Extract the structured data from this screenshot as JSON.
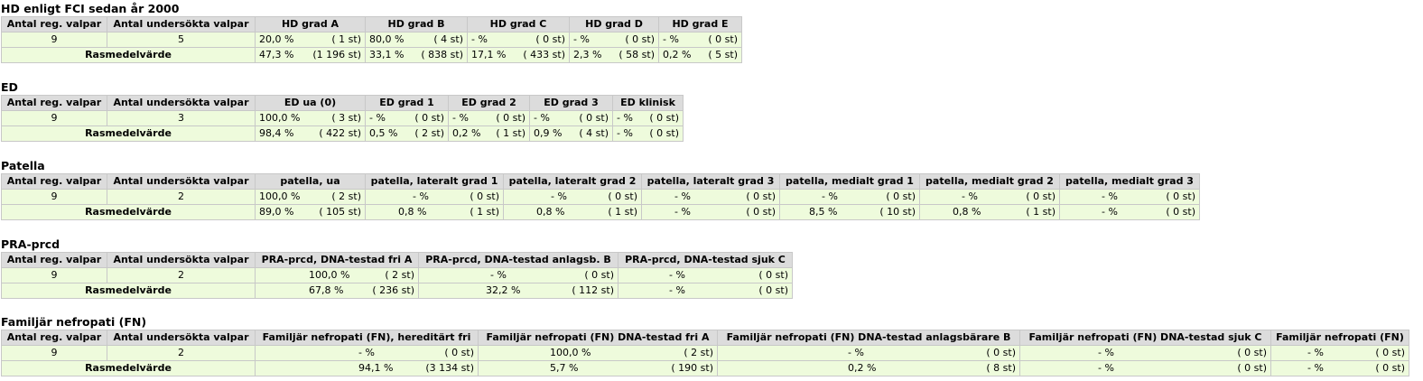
{
  "common": {
    "col_reg": "Antal reg. valpar",
    "col_und": "Antal undersökta valpar",
    "rasmedel": "Rasmedelvärde",
    "reg_value": "9"
  },
  "hd": {
    "title": "HD enligt FCI sedan år 2000",
    "undersokta": "5",
    "headers": [
      "HD grad A",
      "HD grad B",
      "HD grad C",
      "HD grad D",
      "HD grad E"
    ],
    "row": [
      [
        "20,0 %",
        "( 1 st)"
      ],
      [
        "80,0 %",
        "( 4 st)"
      ],
      [
        "- %",
        "( 0 st)"
      ],
      [
        "- %",
        "( 0 st)"
      ],
      [
        "- %",
        "( 0 st)"
      ]
    ],
    "ras": [
      [
        "47,3 %",
        "(1 196 st)"
      ],
      [
        "33,1 %",
        "( 838 st)"
      ],
      [
        "17,1 %",
        "( 433 st)"
      ],
      [
        "2,3 %",
        "( 58 st)"
      ],
      [
        "0,2 %",
        "( 5 st)"
      ]
    ]
  },
  "ed": {
    "title": "ED",
    "undersokta": "3",
    "headers": [
      "ED ua (0)",
      "ED grad 1",
      "ED grad 2",
      "ED grad 3",
      "ED klinisk"
    ],
    "row": [
      [
        "100,0 %",
        "( 3 st)"
      ],
      [
        "- %",
        "( 0 st)"
      ],
      [
        "- %",
        "( 0 st)"
      ],
      [
        "- %",
        "( 0 st)"
      ],
      [
        "- %",
        "( 0 st)"
      ]
    ],
    "ras": [
      [
        "98,4 %",
        "( 422 st)"
      ],
      [
        "0,5 %",
        "( 2 st)"
      ],
      [
        "0,2 %",
        "( 1 st)"
      ],
      [
        "0,9 %",
        "( 4 st)"
      ],
      [
        "- %",
        "( 0 st)"
      ]
    ]
  },
  "patella": {
    "title": "Patella",
    "undersokta": "2",
    "headers": [
      "patella, ua",
      "patella, lateralt grad 1",
      "patella, lateralt grad 2",
      "patella, lateralt grad 3",
      "patella, medialt grad 1",
      "patella, medialt grad 2",
      "patella, medialt grad 3"
    ],
    "row": [
      [
        "100,0 %",
        "( 2 st)"
      ],
      [
        "- %",
        "( 0 st)"
      ],
      [
        "- %",
        "( 0 st)"
      ],
      [
        "- %",
        "( 0 st)"
      ],
      [
        "- %",
        "( 0 st)"
      ],
      [
        "- %",
        "( 0 st)"
      ],
      [
        "- %",
        "( 0 st)"
      ]
    ],
    "ras": [
      [
        "89,0 %",
        "( 105 st)"
      ],
      [
        "0,8 %",
        "( 1 st)"
      ],
      [
        "0,8 %",
        "( 1 st)"
      ],
      [
        "- %",
        "( 0 st)"
      ],
      [
        "8,5 %",
        "( 10 st)"
      ],
      [
        "0,8 %",
        "( 1 st)"
      ],
      [
        "- %",
        "( 0 st)"
      ]
    ]
  },
  "pra": {
    "title": "PRA-prcd",
    "undersokta": "2",
    "headers": [
      "PRA-prcd, DNA-testad fri A",
      "PRA-prcd, DNA-testad anlagsb. B",
      "PRA-prcd, DNA-testad sjuk C"
    ],
    "row": [
      [
        "100,0 %",
        "( 2 st)"
      ],
      [
        "- %",
        "( 0 st)"
      ],
      [
        "- %",
        "( 0 st)"
      ]
    ],
    "ras": [
      [
        "67,8 %",
        "( 236 st)"
      ],
      [
        "32,2 %",
        "( 112 st)"
      ],
      [
        "- %",
        "( 0 st)"
      ]
    ]
  },
  "fn": {
    "title": "Familjär nefropati (FN)",
    "undersokta": "2",
    "headers": [
      "Familjär nefropati (FN), hereditärt fri",
      "Familjär nefropati (FN) DNA-testad fri A",
      "Familjär nefropati (FN) DNA-testad anlagsbärare B",
      "Familjär nefropati (FN) DNA-testad sjuk C",
      "Familjär nefropati (FN)"
    ],
    "row": [
      [
        "- %",
        "( 0 st)"
      ],
      [
        "100,0 %",
        "( 2 st)"
      ],
      [
        "- %",
        "( 0 st)"
      ],
      [
        "- %",
        "( 0 st)"
      ],
      [
        "- %",
        "( 0 st)"
      ]
    ],
    "ras": [
      [
        "94,1 %",
        "(3 134 st)"
      ],
      [
        "5,7 %",
        "( 190 st)"
      ],
      [
        "0,2 %",
        "( 8 st)"
      ],
      [
        "- %",
        "( 0 st)"
      ],
      [
        "- %",
        "( 0 st)"
      ]
    ]
  }
}
